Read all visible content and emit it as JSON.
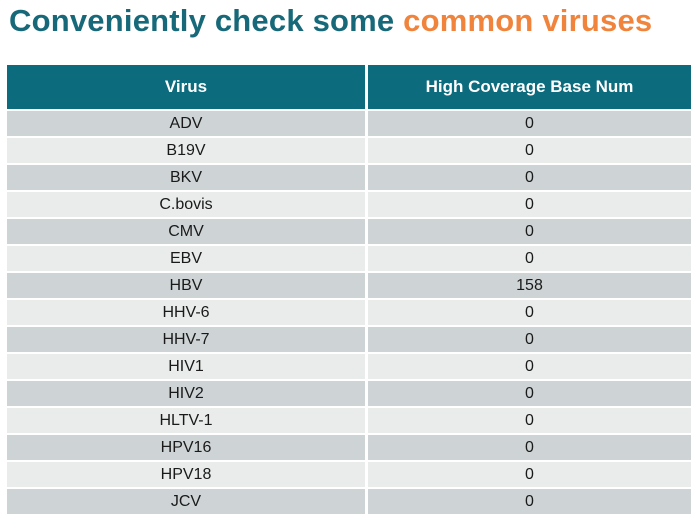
{
  "title": {
    "teal_text": "Conveniently check some ",
    "orange_text": "common viruses"
  },
  "colors": {
    "title_teal": "#17697a",
    "title_orange": "#f0843c",
    "header_bg": "#0c6b7d",
    "header_text": "#ffffff",
    "row_dark": "#ced4d6",
    "row_light": "#e9eceb"
  },
  "chart_data": {
    "type": "table",
    "title": "Conveniently check some common viruses",
    "columns": [
      "Virus",
      "High Coverage Base Num"
    ],
    "rows": [
      [
        "ADV",
        "0"
      ],
      [
        "B19V",
        "0"
      ],
      [
        "BKV",
        "0"
      ],
      [
        "C.bovis",
        "0"
      ],
      [
        "CMV",
        "0"
      ],
      [
        "EBV",
        "0"
      ],
      [
        "HBV",
        "158"
      ],
      [
        "HHV-6",
        "0"
      ],
      [
        "HHV-7",
        "0"
      ],
      [
        "HIV1",
        "0"
      ],
      [
        "HIV2",
        "0"
      ],
      [
        "HLTV-1",
        "0"
      ],
      [
        "HPV16",
        "0"
      ],
      [
        "HPV18",
        "0"
      ],
      [
        "JCV",
        "0"
      ]
    ]
  }
}
